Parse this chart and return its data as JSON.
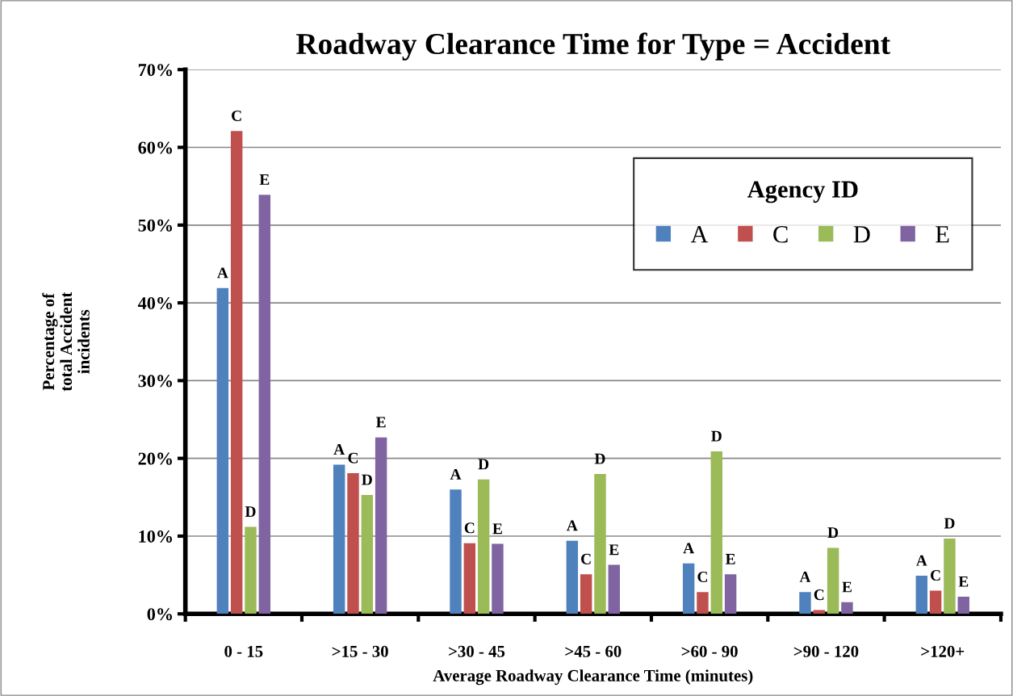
{
  "chart_data": {
    "type": "bar",
    "title": "Roadway Clearance Time for Type = Accident",
    "xlabel": "Average Roadway Clearance Time (minutes)",
    "ylabel": "Percentage of\ntotal Accident\nincidents",
    "legend_title": "Agency ID",
    "legend": "top right",
    "grid": "y",
    "categories": [
      "0 - 15",
      ">15 - 30",
      ">30 - 45",
      ">45 - 60",
      ">60 - 90",
      ">90 - 120",
      ">120+"
    ],
    "ylim": [
      0,
      70
    ],
    "yticks": [
      {
        "value": 0,
        "label": "0%"
      },
      {
        "value": 10,
        "label": "10%"
      },
      {
        "value": 20,
        "label": "20%"
      },
      {
        "value": 30,
        "label": "30%"
      },
      {
        "value": 40,
        "label": "40%"
      },
      {
        "value": 50,
        "label": "50%"
      },
      {
        "value": 60,
        "label": "60%"
      },
      {
        "value": 70,
        "label": "70%"
      }
    ],
    "series": [
      {
        "name": "A",
        "color": "#4f81bd",
        "values": [
          41.9,
          19.2,
          16.0,
          9.4,
          6.5,
          2.8,
          4.9
        ],
        "value_labels": [
          "A",
          "A",
          "A",
          "A",
          "A",
          "A",
          "A"
        ]
      },
      {
        "name": "C",
        "color": "#c0504d",
        "values": [
          62.1,
          18.1,
          9.1,
          5.1,
          2.8,
          0.5,
          3.0
        ],
        "value_labels": [
          "C",
          "C",
          "C",
          "C",
          "C",
          "C",
          "C"
        ]
      },
      {
        "name": "D",
        "color": "#9bbb59",
        "values": [
          11.2,
          15.3,
          17.3,
          18.0,
          20.9,
          8.5,
          9.7
        ],
        "value_labels": [
          "D",
          "D",
          "D",
          "D",
          "D",
          "D",
          "D"
        ]
      },
      {
        "name": "E",
        "color": "#8064a2",
        "values": [
          53.9,
          22.7,
          9.0,
          6.3,
          5.1,
          1.5,
          2.2
        ],
        "value_labels": [
          "E",
          "E",
          "E",
          "E",
          "E",
          "E",
          "E"
        ]
      }
    ]
  }
}
